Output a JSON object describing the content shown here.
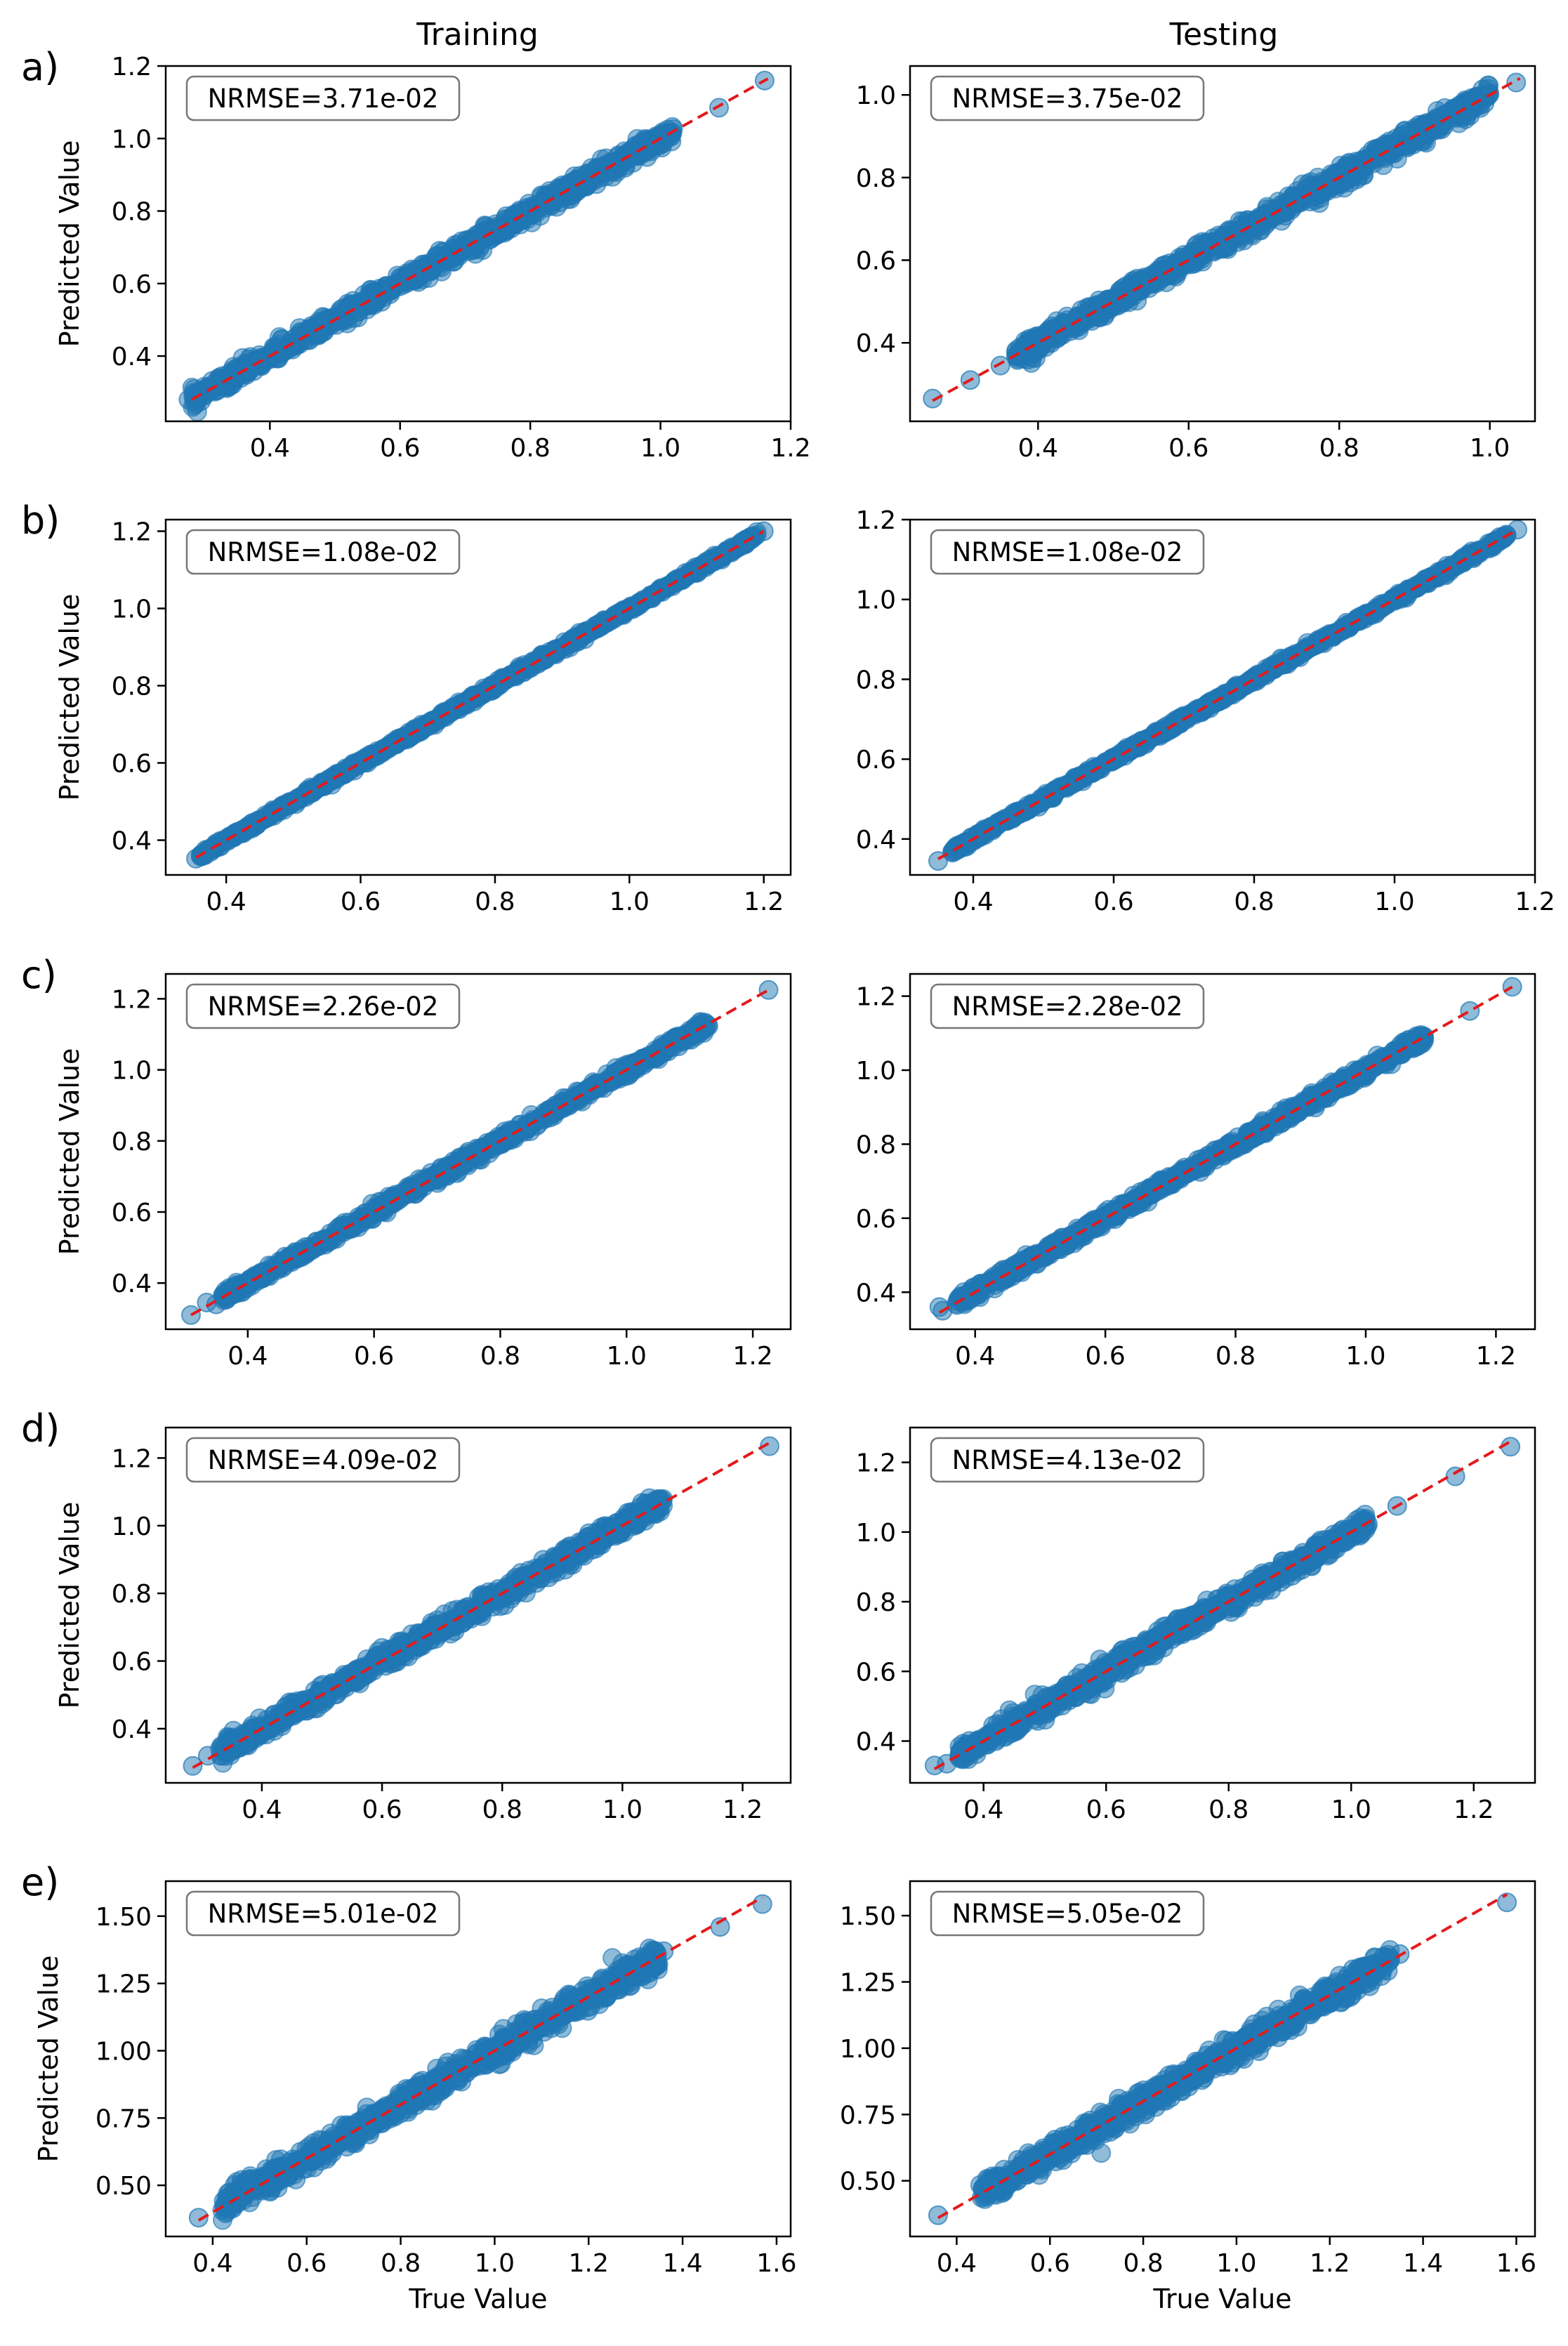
{
  "figure": {
    "column_titles": [
      "Training",
      "Testing"
    ],
    "xlabel": "True Value",
    "ylabel": "Predicted Value",
    "colors": {
      "points": "#1f77b4",
      "identity_line": "#e31a1c",
      "axes": "#000000"
    }
  },
  "chart_data": [
    {
      "type": "scatter",
      "panel_label": "a)",
      "column": "Training",
      "annotation": "NRMSE=3.71e-02",
      "xlim": [
        0.24,
        1.2
      ],
      "ylim": [
        0.22,
        1.2
      ],
      "xticks": [
        0.4,
        0.6,
        0.8,
        1.0,
        1.2
      ],
      "yticks": [
        0.4,
        0.6,
        0.8,
        1.0,
        1.2
      ],
      "xtick_labels": [
        "0.4",
        "0.6",
        "0.8",
        "1.0",
        "1.2"
      ],
      "ytick_labels": [
        "0.4",
        "0.6",
        "0.8",
        "1.0",
        "1.2"
      ],
      "range": [
        0.28,
        1.02
      ],
      "spread": 0.012,
      "outliers": [
        [
          0.275,
          0.28
        ],
        [
          0.31,
          0.305
        ],
        [
          1.09,
          1.085
        ],
        [
          1.16,
          1.16
        ]
      ],
      "line": [
        0.28,
        1.165
      ]
    },
    {
      "type": "scatter",
      "panel_label": "",
      "column": "Testing",
      "annotation": "NRMSE=3.75e-02",
      "xlim": [
        0.23,
        1.06
      ],
      "ylim": [
        0.21,
        1.07
      ],
      "xticks": [
        0.4,
        0.6,
        0.8,
        1.0
      ],
      "yticks": [
        0.4,
        0.6,
        0.8,
        1.0
      ],
      "xtick_labels": [
        "0.4",
        "0.6",
        "0.8",
        "1.0"
      ],
      "ytick_labels": [
        "0.4",
        "0.6",
        "0.8",
        "1.0"
      ],
      "range": [
        0.37,
        1.0
      ],
      "spread": 0.012,
      "outliers": [
        [
          0.26,
          0.265
        ],
        [
          0.31,
          0.31
        ],
        [
          0.35,
          0.345
        ],
        [
          1.035,
          1.03
        ]
      ],
      "line": [
        0.26,
        1.04
      ]
    },
    {
      "type": "scatter",
      "panel_label": "b)",
      "column": "Training",
      "annotation": "NRMSE=1.08e-02",
      "xlim": [
        0.31,
        1.24
      ],
      "ylim": [
        0.31,
        1.23
      ],
      "xticks": [
        0.4,
        0.6,
        0.8,
        1.0,
        1.2
      ],
      "yticks": [
        0.4,
        0.6,
        0.8,
        1.0,
        1.2
      ],
      "xtick_labels": [
        "0.4",
        "0.6",
        "0.8",
        "1.0",
        "1.2"
      ],
      "ytick_labels": [
        "0.4",
        "0.6",
        "0.8",
        "1.0",
        "1.2"
      ],
      "range": [
        0.36,
        1.19
      ],
      "spread": 0.004,
      "outliers": [
        [
          0.355,
          0.352
        ],
        [
          1.2,
          1.2
        ]
      ],
      "line": [
        0.355,
        1.2
      ]
    },
    {
      "type": "scatter",
      "panel_label": "",
      "column": "Testing",
      "annotation": "NRMSE=1.08e-02",
      "xlim": [
        0.31,
        1.2
      ],
      "ylim": [
        0.31,
        1.2
      ],
      "xticks": [
        0.4,
        0.6,
        0.8,
        1.0,
        1.2
      ],
      "yticks": [
        0.4,
        0.6,
        0.8,
        1.0,
        1.2
      ],
      "xtick_labels": [
        "0.4",
        "0.6",
        "0.8",
        "1.0",
        "1.2"
      ],
      "ytick_labels": [
        "0.4",
        "0.6",
        "0.8",
        "1.0",
        "1.2"
      ],
      "range": [
        0.37,
        1.16
      ],
      "spread": 0.004,
      "outliers": [
        [
          0.35,
          0.345
        ],
        [
          0.38,
          0.375
        ],
        [
          1.175,
          1.175
        ]
      ],
      "line": [
        0.35,
        1.175
      ]
    },
    {
      "type": "scatter",
      "panel_label": "c)",
      "column": "Training",
      "annotation": "NRMSE=2.26e-02",
      "xlim": [
        0.27,
        1.26
      ],
      "ylim": [
        0.27,
        1.27
      ],
      "xticks": [
        0.4,
        0.6,
        0.8,
        1.0,
        1.2
      ],
      "yticks": [
        0.4,
        0.6,
        0.8,
        1.0,
        1.2
      ],
      "xtick_labels": [
        "0.4",
        "0.6",
        "0.8",
        "1.0",
        "1.2"
      ],
      "ytick_labels": [
        "0.4",
        "0.6",
        "0.8",
        "1.0",
        "1.2"
      ],
      "range": [
        0.36,
        1.13
      ],
      "spread": 0.008,
      "outliers": [
        [
          0.31,
          0.31
        ],
        [
          0.335,
          0.345
        ],
        [
          0.35,
          0.34
        ],
        [
          1.225,
          1.225
        ]
      ],
      "line": [
        0.31,
        1.225
      ]
    },
    {
      "type": "scatter",
      "panel_label": "",
      "column": "Testing",
      "annotation": "NRMSE=2.28e-02",
      "xlim": [
        0.3,
        1.26
      ],
      "ylim": [
        0.3,
        1.26
      ],
      "xticks": [
        0.4,
        0.6,
        0.8,
        1.0,
        1.2
      ],
      "yticks": [
        0.4,
        0.6,
        0.8,
        1.0,
        1.2
      ],
      "xtick_labels": [
        "0.4",
        "0.6",
        "0.8",
        "1.0",
        "1.2"
      ],
      "ytick_labels": [
        "0.4",
        "0.6",
        "0.8",
        "1.0",
        "1.2"
      ],
      "range": [
        0.37,
        1.09
      ],
      "spread": 0.008,
      "outliers": [
        [
          0.345,
          0.36
        ],
        [
          0.35,
          0.35
        ],
        [
          1.16,
          1.16
        ],
        [
          1.225,
          1.225
        ]
      ],
      "line": [
        0.345,
        1.225
      ]
    },
    {
      "type": "scatter",
      "panel_label": "d)",
      "column": "Training",
      "annotation": "NRMSE=4.09e-02",
      "xlim": [
        0.24,
        1.28
      ],
      "ylim": [
        0.24,
        1.29
      ],
      "xticks": [
        0.4,
        0.6,
        0.8,
        1.0,
        1.2
      ],
      "yticks": [
        0.4,
        0.6,
        0.8,
        1.0,
        1.2
      ],
      "xtick_labels": [
        "0.4",
        "0.6",
        "0.8",
        "1.0",
        "1.2"
      ],
      "ytick_labels": [
        "0.4",
        "0.6",
        "0.8",
        "1.0",
        "1.2"
      ],
      "range": [
        0.33,
        1.07
      ],
      "spread": 0.014,
      "outliers": [
        [
          0.285,
          0.29
        ],
        [
          0.31,
          0.32
        ],
        [
          1.245,
          1.235
        ]
      ],
      "line": [
        0.285,
        1.245
      ]
    },
    {
      "type": "scatter",
      "panel_label": "",
      "column": "Testing",
      "annotation": "NRMSE=4.13e-02",
      "xlim": [
        0.28,
        1.3
      ],
      "ylim": [
        0.28,
        1.3
      ],
      "xticks": [
        0.4,
        0.6,
        0.8,
        1.0,
        1.2
      ],
      "yticks": [
        0.4,
        0.6,
        0.8,
        1.0,
        1.2
      ],
      "xtick_labels": [
        "0.4",
        "0.6",
        "0.8",
        "1.0",
        "1.2"
      ],
      "ytick_labels": [
        "0.4",
        "0.6",
        "0.8",
        "1.0",
        "1.2"
      ],
      "range": [
        0.36,
        1.03
      ],
      "spread": 0.014,
      "outliers": [
        [
          0.32,
          0.33
        ],
        [
          0.34,
          0.335
        ],
        [
          1.075,
          1.075
        ],
        [
          1.17,
          1.16
        ],
        [
          1.26,
          1.245
        ]
      ],
      "line": [
        0.32,
        1.26
      ]
    },
    {
      "type": "scatter",
      "panel_label": "e)",
      "column": "Training",
      "annotation": "NRMSE=5.01e-02",
      "xlim": [
        0.3,
        1.63
      ],
      "ylim": [
        0.31,
        1.63
      ],
      "xticks": [
        0.4,
        0.6,
        0.8,
        1.0,
        1.2,
        1.4,
        1.6
      ],
      "yticks": [
        0.5,
        0.75,
        1.0,
        1.25,
        1.5
      ],
      "xtick_labels": [
        "0.4",
        "0.6",
        "0.8",
        "1.0",
        "1.2",
        "1.4",
        "1.6"
      ],
      "ytick_labels": [
        "0.50",
        "0.75",
        "1.00",
        "1.25",
        "1.50"
      ],
      "range": [
        0.42,
        1.35
      ],
      "spread": 0.022,
      "outliers": [
        [
          0.37,
          0.38
        ],
        [
          1.36,
          1.37
        ],
        [
          1.48,
          1.46
        ],
        [
          1.57,
          1.545
        ]
      ],
      "line": [
        0.37,
        1.57
      ]
    },
    {
      "type": "scatter",
      "panel_label": "",
      "column": "Testing",
      "annotation": "NRMSE=5.05e-02",
      "xlim": [
        0.3,
        1.64
      ],
      "ylim": [
        0.29,
        1.63
      ],
      "xticks": [
        0.4,
        0.6,
        0.8,
        1.0,
        1.2,
        1.4,
        1.6
      ],
      "yticks": [
        0.5,
        0.75,
        1.0,
        1.25,
        1.5
      ],
      "xtick_labels": [
        "0.4",
        "0.6",
        "0.8",
        "1.0",
        "1.2",
        "1.4",
        "1.6"
      ],
      "ytick_labels": [
        "0.50",
        "0.75",
        "1.00",
        "1.25",
        "1.50"
      ],
      "range": [
        0.45,
        1.33
      ],
      "spread": 0.022,
      "outliers": [
        [
          0.36,
          0.37
        ],
        [
          1.35,
          1.355
        ],
        [
          1.58,
          1.55
        ]
      ],
      "line": [
        0.36,
        1.58
      ]
    }
  ]
}
